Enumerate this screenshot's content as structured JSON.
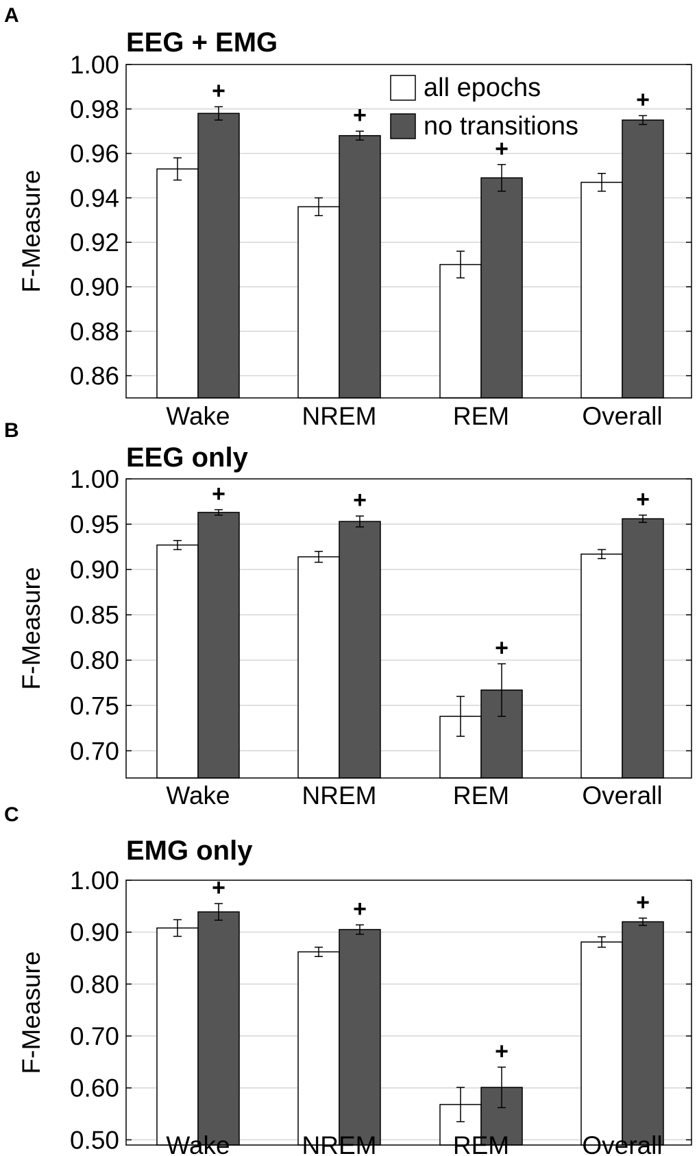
{
  "chart_data": [
    {
      "type": "bar",
      "panel": "A",
      "title": "EEG + EMG",
      "ylabel": "F-Measure",
      "xlabel": "",
      "categories": [
        "Wake",
        "NREM",
        "REM",
        "Overall"
      ],
      "ylim": [
        0.85,
        1.0
      ],
      "yticks": [
        0.86,
        0.88,
        0.9,
        0.92,
        0.94,
        0.96,
        0.98,
        1.0
      ],
      "ytick_labels": [
        "0.86",
        "0.88",
        "0.90",
        "0.92",
        "0.94",
        "0.96",
        "0.98",
        "1.00"
      ],
      "grid": true,
      "legend_position": "top-right",
      "series": [
        {
          "name": "all epochs",
          "color": "#ffffff",
          "values": [
            0.953,
            0.936,
            0.91,
            0.947
          ],
          "errors": [
            0.005,
            0.004,
            0.006,
            0.004
          ]
        },
        {
          "name": "no transitions",
          "color": "#555555",
          "values": [
            0.978,
            0.968,
            0.949,
            0.975
          ],
          "errors": [
            0.003,
            0.002,
            0.006,
            0.002
          ]
        }
      ],
      "significance_marker": "+"
    },
    {
      "type": "bar",
      "panel": "B",
      "title": "EEG only",
      "ylabel": "F-Measure",
      "xlabel": "",
      "categories": [
        "Wake",
        "NREM",
        "REM",
        "Overall"
      ],
      "ylim": [
        0.67,
        1.0
      ],
      "yticks": [
        0.7,
        0.75,
        0.8,
        0.85,
        0.9,
        0.95,
        1.0
      ],
      "ytick_labels": [
        "0.70",
        "0.75",
        "0.80",
        "0.85",
        "0.90",
        "0.95",
        "1.00"
      ],
      "grid": true,
      "series": [
        {
          "name": "all epochs",
          "color": "#ffffff",
          "values": [
            0.927,
            0.914,
            0.738,
            0.917
          ],
          "errors": [
            0.005,
            0.006,
            0.022,
            0.005
          ]
        },
        {
          "name": "no transitions",
          "color": "#555555",
          "values": [
            0.963,
            0.953,
            0.767,
            0.956
          ],
          "errors": [
            0.003,
            0.006,
            0.029,
            0.004
          ]
        }
      ],
      "significance_marker": "+"
    },
    {
      "type": "bar",
      "panel": "C",
      "title": "EMG only",
      "ylabel": "F-Measure",
      "xlabel": "",
      "categories": [
        "Wake",
        "NREM",
        "REM",
        "Overall"
      ],
      "ylim": [
        0.49,
        1.0
      ],
      "yticks": [
        0.5,
        0.6,
        0.7,
        0.8,
        0.9,
        1.0
      ],
      "ytick_labels": [
        "0.50",
        "0.60",
        "0.70",
        "0.80",
        "0.90",
        "1.00"
      ],
      "grid": true,
      "series": [
        {
          "name": "all epochs",
          "color": "#ffffff",
          "values": [
            0.908,
            0.862,
            0.568,
            0.881
          ],
          "errors": [
            0.016,
            0.009,
            0.033,
            0.01
          ]
        },
        {
          "name": "no transitions",
          "color": "#555555",
          "values": [
            0.939,
            0.905,
            0.601,
            0.92
          ],
          "errors": [
            0.016,
            0.009,
            0.039,
            0.007
          ]
        }
      ],
      "significance_marker": "+"
    }
  ]
}
